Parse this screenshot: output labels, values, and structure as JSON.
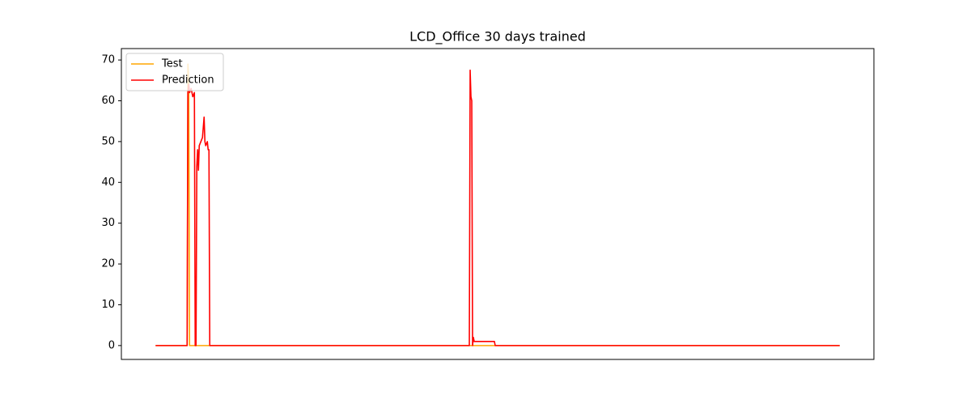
{
  "chart_data": {
    "type": "line",
    "title": "LCD_Office 30 days trained",
    "x": [
      0,
      39,
      40,
      41,
      42,
      44,
      46,
      48,
      49,
      50,
      51,
      52,
      53,
      54,
      56,
      58,
      60,
      61,
      62,
      64,
      65,
      66,
      67,
      388,
      389,
      390,
      391,
      392,
      393,
      394,
      396,
      398,
      419,
      420,
      846
    ],
    "series": [
      {
        "name": "Test",
        "color": "#ffa500",
        "values": [
          0,
          0,
          69,
          65,
          0,
          0,
          0,
          0,
          0,
          0,
          0,
          0,
          0,
          0,
          0,
          0,
          0,
          0,
          0,
          0,
          0,
          0,
          0,
          0,
          0,
          0,
          0,
          0,
          0,
          0,
          0,
          0,
          0,
          0,
          0
        ]
      },
      {
        "name": "Prediction",
        "color": "#ff0000",
        "values": [
          0,
          0,
          62,
          64,
          62,
          63,
          61,
          62,
          0,
          0,
          44,
          48,
          43,
          49,
          50,
          51,
          56,
          50,
          49,
          50,
          48,
          48,
          0,
          0,
          67.5,
          61,
          60,
          0,
          2,
          1,
          1,
          1,
          1,
          0,
          0
        ]
      }
    ],
    "xlim": [
      -42.3,
      888.3
    ],
    "ylim": [
      -3.4,
      72.8
    ],
    "yticks": [
      0,
      10,
      20,
      30,
      40,
      50,
      60,
      70
    ],
    "legend": "upper left",
    "grid": false
  }
}
